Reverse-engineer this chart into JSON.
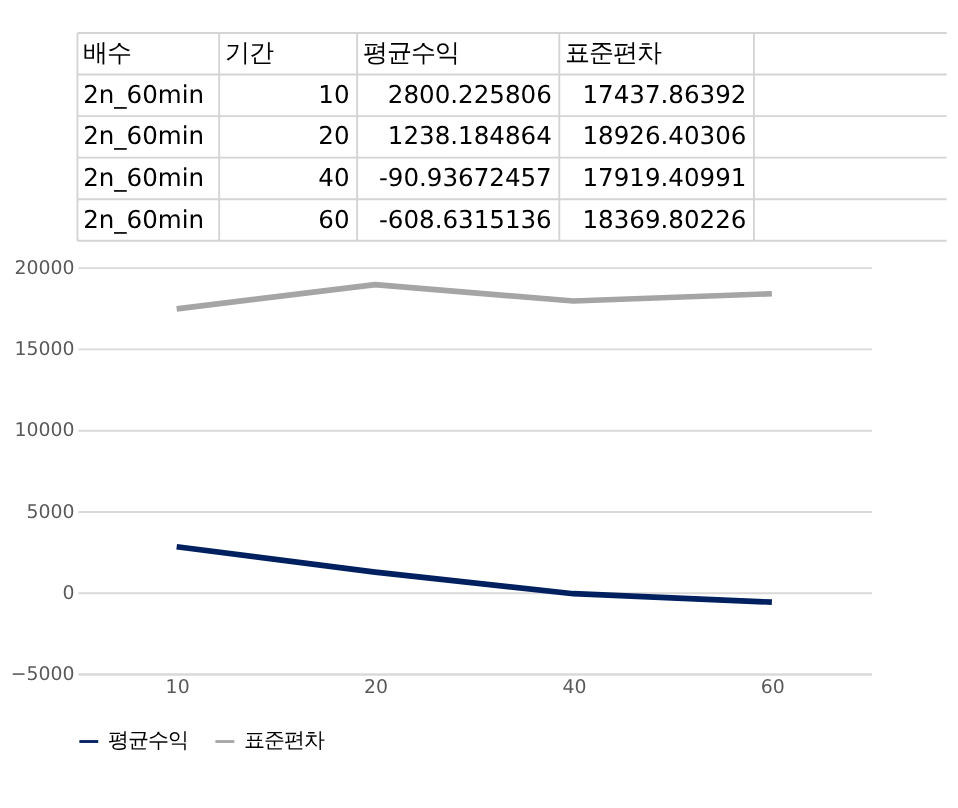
{
  "chart_data": [
    {
      "type": "other",
      "annotations": [
        "배수",
        "기간",
        "평균수익",
        "표준편차",
        "2n_60min",
        "10",
        "2800.225806",
        "17437.86392",
        "2n_60min",
        "20",
        "1238.184864",
        "18926.40306",
        "2n_60min",
        "40",
        "-90.93672457",
        "17919.40991",
        "2n_60min",
        "60",
        "-608.6315136",
        "18369.80226"
      ]
    },
    {
      "type": "line",
      "categories": [
        "10",
        "20",
        "40",
        "60"
      ],
      "series": [
        {
          "name": "평균수익",
          "color": "#002060",
          "values": [
            2800,
            1240,
            -90,
            -610
          ]
        },
        {
          "name": "표준편차",
          "color": "#a5a5a5",
          "values": [
            17440,
            18930,
            17920,
            18370
          ]
        }
      ],
      "ylim": [
        -5000,
        20000
      ],
      "yticks": [
        -5000,
        0,
        5000,
        10000,
        15000,
        20000
      ],
      "grid": "y",
      "legend": "bottom",
      "line_style": "solid",
      "marker": "none"
    }
  ]
}
